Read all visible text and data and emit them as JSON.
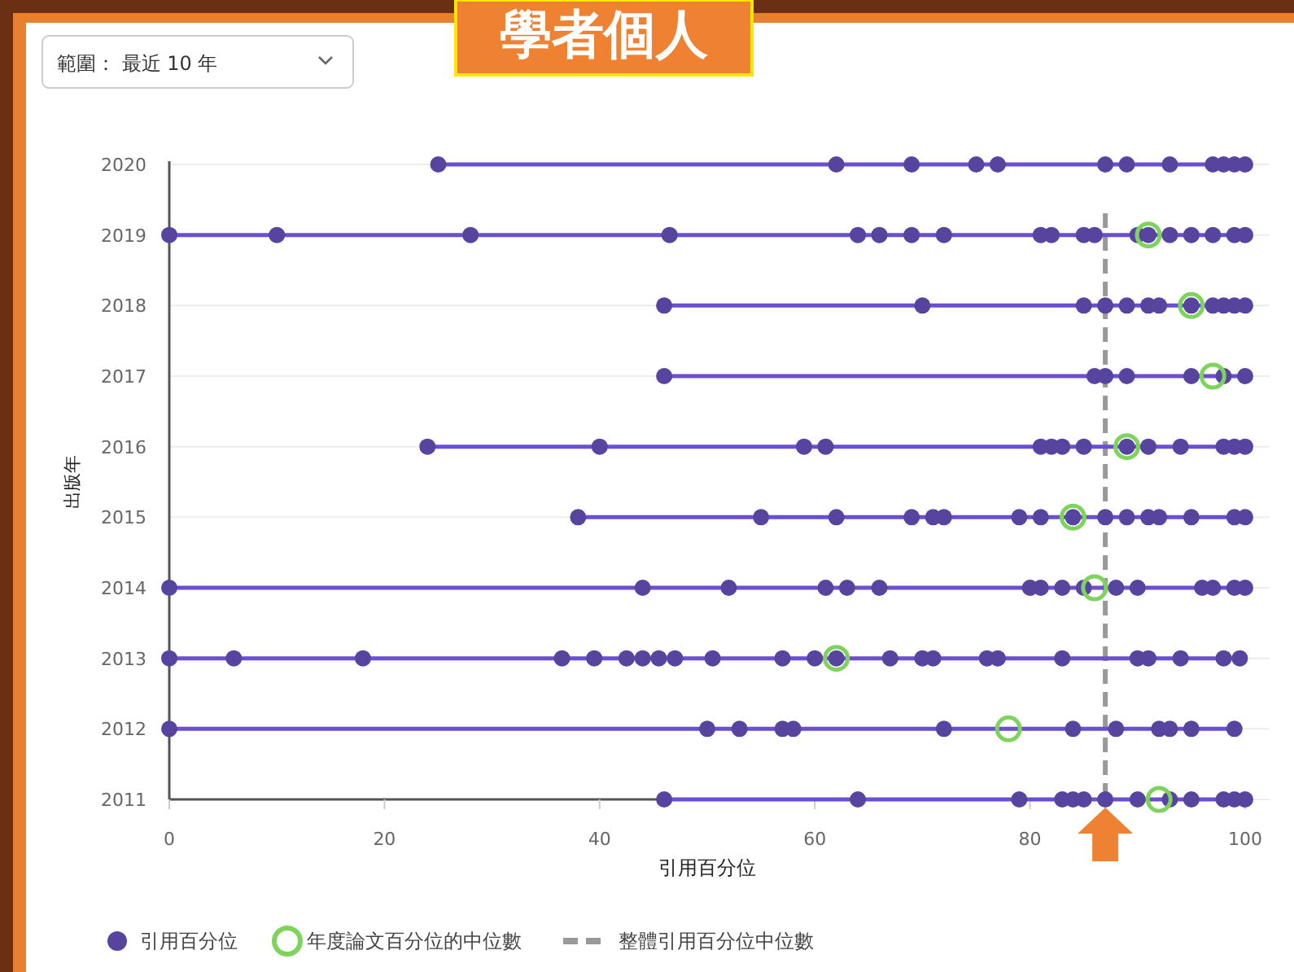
{
  "chart_data": {
    "type": "scatter",
    "title": "學者個人",
    "subtitle": "範圍： 最近 10 年",
    "xlabel": "引用百分位",
    "ylabel": "出版年",
    "xlim": [
      0,
      100
    ],
    "xticks": [
      0,
      20,
      40,
      60,
      80,
      100
    ],
    "ylim": [
      2011,
      2020
    ],
    "yticks": [
      2011,
      2012,
      2013,
      2014,
      2015,
      2016,
      2017,
      2018,
      2019,
      2020
    ],
    "grid": "y",
    "legend": "bottom",
    "series": [
      {
        "type": "line",
        "color": "#6a4fd0",
        "marker": "none",
        "x": [
          25,
          100
        ],
        "values": [
          2020,
          2020
        ]
      },
      {
        "type": "line",
        "color": "#6a4fd0",
        "marker": "none",
        "x": [
          0,
          100
        ],
        "values": [
          2019,
          2019
        ]
      },
      {
        "type": "line",
        "color": "#6a4fd0",
        "marker": "none",
        "x": [
          46,
          100
        ],
        "values": [
          2018,
          2018
        ]
      },
      {
        "type": "line",
        "color": "#6a4fd0",
        "marker": "none",
        "x": [
          46,
          100
        ],
        "values": [
          2017,
          2017
        ]
      },
      {
        "type": "line",
        "color": "#6a4fd0",
        "marker": "none",
        "x": [
          24,
          100
        ],
        "values": [
          2016,
          2016
        ]
      },
      {
        "type": "line",
        "color": "#6a4fd0",
        "marker": "none",
        "x": [
          38,
          100
        ],
        "values": [
          2015,
          2015
        ]
      },
      {
        "type": "line",
        "color": "#6a4fd0",
        "marker": "none",
        "x": [
          0,
          100
        ],
        "values": [
          2014,
          2014
        ]
      },
      {
        "type": "line",
        "color": "#6a4fd0",
        "marker": "none",
        "x": [
          0,
          99.5
        ],
        "values": [
          2013,
          2013
        ]
      },
      {
        "type": "line",
        "color": "#6a4fd0",
        "marker": "none",
        "x": [
          0,
          99
        ],
        "values": [
          2012,
          2012
        ]
      },
      {
        "type": "line",
        "color": "#6a4fd0",
        "marker": "none",
        "x": [
          46,
          100
        ],
        "values": [
          2011,
          2011
        ]
      },
      {
        "name": "引用百分位",
        "color": "#56449e",
        "marker": "circle",
        "x": [
          25,
          62,
          69,
          75,
          77,
          87,
          89,
          93,
          97,
          98,
          99,
          100,
          0,
          10,
          28,
          46.5,
          64,
          66,
          69,
          72,
          81,
          82,
          85,
          86,
          90,
          91,
          93,
          95,
          97,
          99,
          100,
          46,
          70,
          85,
          87,
          89,
          91,
          92,
          95,
          97,
          98,
          99,
          100,
          46,
          86,
          87,
          89,
          95,
          98,
          100,
          24,
          40,
          59,
          61,
          81,
          82,
          83,
          85,
          89,
          91,
          94,
          98,
          99,
          100,
          38,
          55,
          62,
          69,
          71,
          72,
          79,
          81,
          84,
          87,
          89,
          91,
          92,
          95,
          99,
          100,
          0,
          44,
          52,
          61,
          63,
          66,
          80,
          81,
          83,
          85,
          88,
          90,
          96,
          97,
          99,
          100,
          0,
          6,
          18,
          36.5,
          39.5,
          42.5,
          44,
          45.5,
          47,
          50.5,
          57,
          60,
          62,
          67,
          70,
          71,
          76,
          77,
          83,
          90,
          91,
          94,
          98,
          99.5,
          0,
          50,
          53,
          57,
          58,
          72,
          84,
          88,
          92,
          93,
          95,
          99,
          46,
          64,
          79,
          83,
          84,
          85,
          87,
          90,
          93,
          95,
          98,
          99,
          100
        ],
        "values": [
          2020,
          2020,
          2020,
          2020,
          2020,
          2020,
          2020,
          2020,
          2020,
          2020,
          2020,
          2020,
          2019,
          2019,
          2019,
          2019,
          2019,
          2019,
          2019,
          2019,
          2019,
          2019,
          2019,
          2019,
          2019,
          2019,
          2019,
          2019,
          2019,
          2019,
          2019,
          2018,
          2018,
          2018,
          2018,
          2018,
          2018,
          2018,
          2018,
          2018,
          2018,
          2018,
          2018,
          2017,
          2017,
          2017,
          2017,
          2017,
          2017,
          2017,
          2016,
          2016,
          2016,
          2016,
          2016,
          2016,
          2016,
          2016,
          2016,
          2016,
          2016,
          2016,
          2016,
          2016,
          2015,
          2015,
          2015,
          2015,
          2015,
          2015,
          2015,
          2015,
          2015,
          2015,
          2015,
          2015,
          2015,
          2015,
          2015,
          2015,
          2014,
          2014,
          2014,
          2014,
          2014,
          2014,
          2014,
          2014,
          2014,
          2014,
          2014,
          2014,
          2014,
          2014,
          2014,
          2014,
          2013,
          2013,
          2013,
          2013,
          2013,
          2013,
          2013,
          2013,
          2013,
          2013,
          2013,
          2013,
          2013,
          2013,
          2013,
          2013,
          2013,
          2013,
          2013,
          2013,
          2013,
          2013,
          2013,
          2013,
          2012,
          2012,
          2012,
          2012,
          2012,
          2012,
          2012,
          2012,
          2012,
          2012,
          2012,
          2012,
          2011,
          2011,
          2011,
          2011,
          2011,
          2011,
          2011,
          2011,
          2011,
          2011,
          2011,
          2011,
          2011
        ]
      },
      {
        "name": "年度論文百分位的中位數",
        "color": "#7dd35c",
        "marker": "circle",
        "x": [
          91,
          95,
          97,
          89,
          84,
          86,
          62,
          78,
          92
        ],
        "values": [
          2019,
          2018,
          2017,
          2016,
          2015,
          2014,
          2013,
          2012,
          2011
        ]
      }
    ],
    "ref_lines": [
      {
        "axis": "x",
        "value": 87,
        "label": "整體引用百分位中位數",
        "color": "#999999",
        "line_style": "dashed"
      }
    ]
  }
}
